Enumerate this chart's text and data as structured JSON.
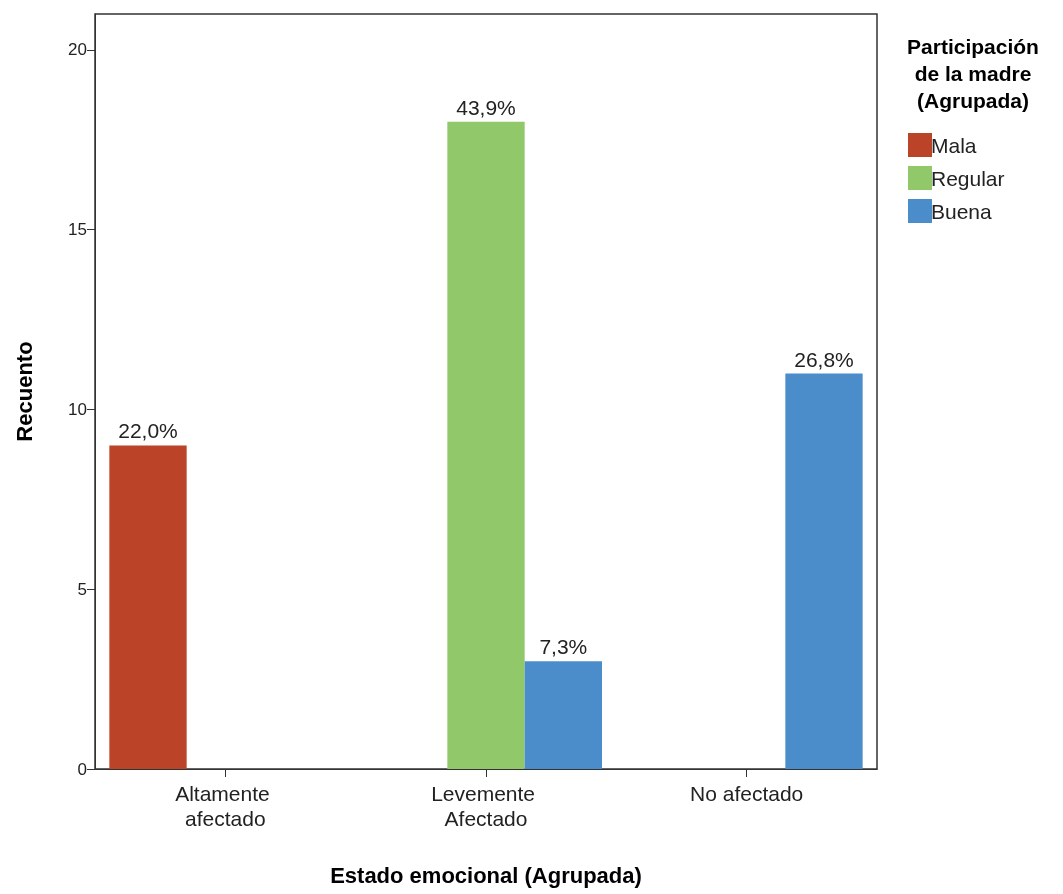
{
  "chart_data": {
    "type": "bar",
    "xlabel": "Estado emocional (Agrupada)",
    "ylabel": "Recuento",
    "legend_title": "Participación\nde la madre\n(Agrupada)",
    "categories": [
      "Altamente afectado",
      "Levemente Afectado",
      "No afectado"
    ],
    "series": [
      {
        "name": "Mala",
        "color": "#bb4327",
        "values": [
          9,
          null,
          null
        ]
      },
      {
        "name": "Regular",
        "color": "#91c86a",
        "values": [
          null,
          18,
          null
        ]
      },
      {
        "name": "Buena",
        "color": "#4b8ccb",
        "values": [
          null,
          3,
          11
        ]
      }
    ],
    "annotations": [
      "22,0%",
      "43,9%",
      "7,3%",
      "26,8%"
    ],
    "ylim": [
      0,
      21
    ],
    "yticks": [
      0,
      5,
      10,
      15,
      20
    ],
    "grid": false,
    "legend": "top right"
  }
}
